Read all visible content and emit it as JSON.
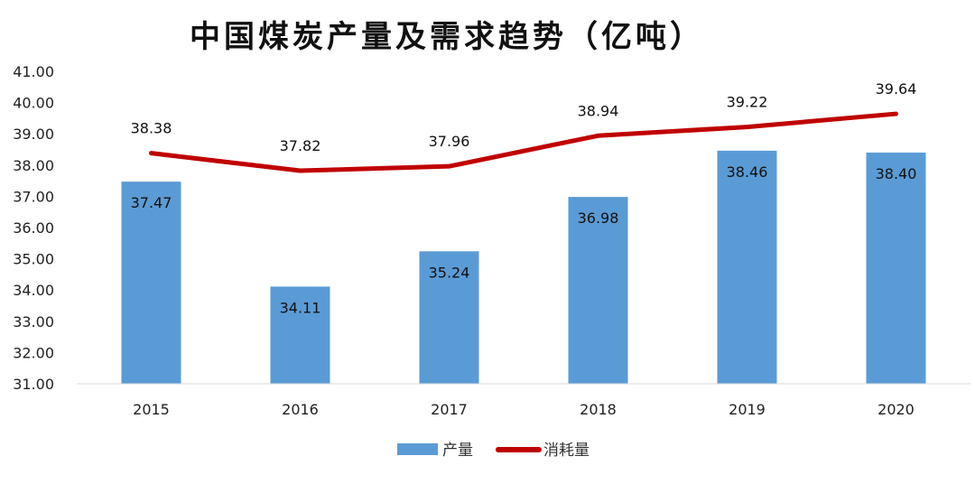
{
  "chart_data": {
    "type": "bar+line",
    "title": "中国煤炭产量及需求趋势（亿吨）",
    "categories": [
      "2015",
      "2016",
      "2017",
      "2018",
      "2019",
      "2020"
    ],
    "series": [
      {
        "name": "产量",
        "type": "bar",
        "color": "#5b9bd5",
        "values": [
          37.47,
          34.11,
          35.24,
          36.98,
          38.46,
          38.4
        ]
      },
      {
        "name": "消耗量",
        "type": "line",
        "color": "#c00000",
        "values": [
          38.38,
          37.82,
          37.96,
          38.94,
          39.22,
          39.64
        ]
      }
    ],
    "ylim": [
      31,
      41
    ],
    "yticks": [
      "31.00",
      "32.00",
      "33.00",
      "34.00",
      "35.00",
      "36.00",
      "37.00",
      "38.00",
      "39.00",
      "40.00",
      "41.00"
    ],
    "grid": false,
    "legend_position": "bottom"
  }
}
